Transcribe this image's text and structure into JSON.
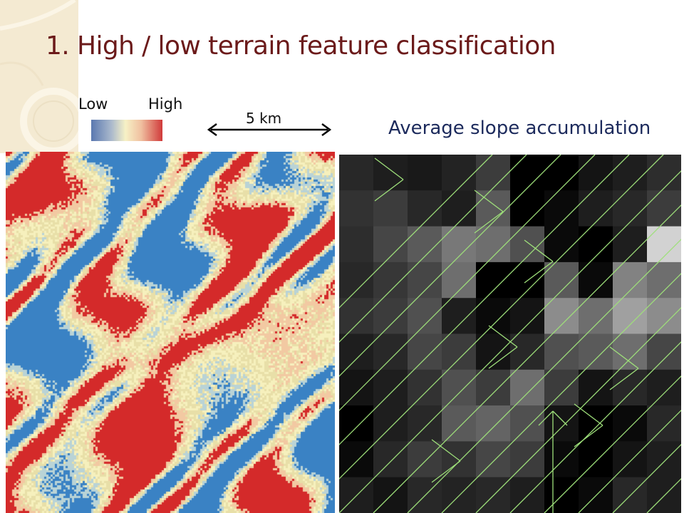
{
  "slide": {
    "title": "1. High / low terrain feature classification"
  },
  "legend": {
    "low_label": "Low",
    "high_label": "High",
    "gradient_colors": [
      "#5a78b0",
      "#a9b8cc",
      "#f6f1c6",
      "#f0c0a0",
      "#d03a3a"
    ]
  },
  "scale_bar": {
    "label": "5 km"
  },
  "right_panel": {
    "caption": "Average slope accumulation",
    "arrow_color": "#9ee07a"
  },
  "left_map": {
    "class_colors": {
      "low": "#3a82c4",
      "mid": "#f6f0bd",
      "mid_alt": "#e8dfa8",
      "high": "#d42a2a"
    }
  }
}
